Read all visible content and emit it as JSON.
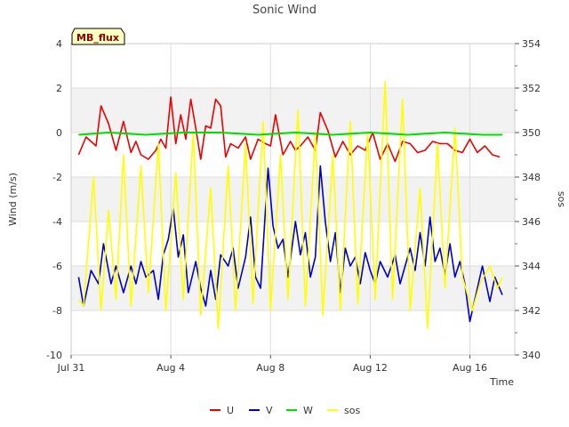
{
  "chart_data": {
    "type": "line",
    "title": "Sonic Wind",
    "badge": "MB_flux",
    "xlabel": "Time",
    "ylabel": "Wind (m/s)",
    "y2label": "sos",
    "xlim": [
      0,
      17.8
    ],
    "ylim": [
      -10,
      4
    ],
    "y2lim": [
      340,
      354
    ],
    "x_ticks": [
      {
        "label": "Jul 31",
        "value": 0
      },
      {
        "label": "Aug 4",
        "value": 4
      },
      {
        "label": "Aug 8",
        "value": 8
      },
      {
        "label": "Aug 12",
        "value": 12
      },
      {
        "label": "Aug 16",
        "value": 16
      }
    ],
    "y_ticks": [
      -10,
      -8,
      -6,
      -4,
      -2,
      0,
      2,
      4
    ],
    "y2_ticks": [
      340,
      342,
      344,
      346,
      348,
      350,
      352,
      354
    ],
    "grid": true,
    "legend_position": "bottom",
    "series": [
      {
        "name": "U",
        "color": "#ee0000",
        "axis": "left",
        "line_width": 1.6,
        "x": [
          0.3,
          0.6,
          1.0,
          1.2,
          1.5,
          1.8,
          2.1,
          2.4,
          2.6,
          2.8,
          3.1,
          3.4,
          3.6,
          3.8,
          4.0,
          4.2,
          4.4,
          4.6,
          4.8,
          5.0,
          5.2,
          5.4,
          5.6,
          5.8,
          6.0,
          6.2,
          6.4,
          6.7,
          7.0,
          7.2,
          7.5,
          7.8,
          8.0,
          8.2,
          8.5,
          8.8,
          9.0,
          9.2,
          9.5,
          9.8,
          10.0,
          10.3,
          10.6,
          10.9,
          11.2,
          11.5,
          11.8,
          12.1,
          12.4,
          12.7,
          13.0,
          13.3,
          13.6,
          13.9,
          14.2,
          14.5,
          14.8,
          15.1,
          15.4,
          15.7,
          16.0,
          16.3,
          16.6,
          16.9,
          17.2
        ],
        "y": [
          -1.0,
          -0.2,
          -0.6,
          1.2,
          0.4,
          -0.8,
          0.5,
          -0.9,
          -0.4,
          -1.0,
          -1.2,
          -0.8,
          -0.3,
          -0.7,
          1.6,
          -0.5,
          0.8,
          -0.3,
          1.5,
          0.2,
          -1.2,
          0.3,
          0.2,
          1.5,
          1.2,
          -1.1,
          -0.5,
          -0.7,
          -0.2,
          -1.2,
          -0.3,
          -0.5,
          -0.6,
          0.8,
          -1.0,
          -0.4,
          -0.8,
          -0.6,
          -0.2,
          -0.8,
          0.9,
          0.1,
          -1.1,
          -0.4,
          -1.0,
          -0.6,
          -0.8,
          0.0,
          -1.2,
          -0.5,
          -1.3,
          -0.4,
          -0.5,
          -0.9,
          -0.8,
          -0.4,
          -0.5,
          -0.5,
          -0.8,
          -0.9,
          -0.3,
          -0.9,
          -0.6,
          -1.0,
          -1.1
        ]
      },
      {
        "name": "V",
        "color": "#0000cc",
        "axis": "left",
        "line_width": 1.6,
        "x": [
          0.3,
          0.5,
          0.8,
          1.1,
          1.3,
          1.6,
          1.8,
          2.1,
          2.4,
          2.6,
          2.8,
          3.0,
          3.3,
          3.5,
          3.7,
          3.9,
          4.1,
          4.3,
          4.5,
          4.7,
          5.0,
          5.2,
          5.4,
          5.6,
          5.8,
          6.0,
          6.3,
          6.5,
          6.7,
          7.0,
          7.2,
          7.4,
          7.6,
          7.9,
          8.1,
          8.3,
          8.5,
          8.7,
          9.0,
          9.2,
          9.4,
          9.6,
          9.8,
          10.0,
          10.2,
          10.4,
          10.6,
          10.8,
          11.0,
          11.2,
          11.4,
          11.6,
          11.8,
          12.0,
          12.2,
          12.4,
          12.7,
          13.0,
          13.2,
          13.4,
          13.6,
          13.8,
          14.0,
          14.2,
          14.4,
          14.6,
          14.8,
          15.0,
          15.2,
          15.4,
          15.6,
          15.8,
          16.0,
          16.2,
          16.5,
          16.8,
          17.0,
          17.3
        ],
        "y": [
          -6.5,
          -7.8,
          -6.2,
          -6.8,
          -5.0,
          -6.8,
          -6.0,
          -7.2,
          -6.0,
          -6.8,
          -5.8,
          -6.5,
          -6.2,
          -7.5,
          -5.5,
          -4.8,
          -3.4,
          -5.6,
          -4.6,
          -7.2,
          -5.8,
          -7.0,
          -7.8,
          -6.2,
          -7.5,
          -5.5,
          -6.0,
          -5.2,
          -7.0,
          -5.6,
          -3.8,
          -6.5,
          -7.0,
          -1.6,
          -4.2,
          -5.2,
          -4.8,
          -6.5,
          -4.0,
          -5.5,
          -4.5,
          -6.5,
          -5.6,
          -1.5,
          -4.0,
          -5.8,
          -4.5,
          -7.2,
          -5.2,
          -6.0,
          -5.6,
          -6.8,
          -5.4,
          -6.2,
          -6.8,
          -5.8,
          -6.5,
          -5.5,
          -6.8,
          -6.0,
          -5.2,
          -6.2,
          -4.5,
          -6.0,
          -3.8,
          -5.8,
          -5.2,
          -6.4,
          -5.0,
          -6.5,
          -5.8,
          -6.8,
          -8.5,
          -7.5,
          -6.0,
          -7.6,
          -6.5,
          -7.3
        ]
      },
      {
        "name": "W",
        "color": "#00dd00",
        "axis": "left",
        "line_width": 2.0,
        "x": [
          0.3,
          1.5,
          3.0,
          4.5,
          6.0,
          7.5,
          9.0,
          10.5,
          12.0,
          13.5,
          15.0,
          16.5,
          17.3
        ],
        "y": [
          -0.1,
          0.0,
          -0.1,
          0.0,
          0.0,
          -0.1,
          0.0,
          -0.1,
          0.0,
          -0.1,
          0.0,
          -0.1,
          -0.1
        ]
      },
      {
        "name": "sos",
        "color": "#ffff00",
        "axis": "right",
        "line_width": 1.6,
        "x": [
          0.3,
          0.5,
          0.9,
          1.2,
          1.5,
          1.8,
          2.1,
          2.4,
          2.8,
          3.1,
          3.5,
          3.8,
          4.2,
          4.5,
          4.9,
          5.2,
          5.6,
          5.9,
          6.3,
          6.6,
          7.0,
          7.3,
          7.7,
          8.0,
          8.4,
          8.7,
          9.1,
          9.4,
          9.8,
          10.1,
          10.5,
          10.8,
          11.2,
          11.5,
          11.9,
          12.2,
          12.6,
          12.9,
          13.3,
          13.6,
          14.0,
          14.3,
          14.7,
          15.0,
          15.4,
          15.7,
          16.1,
          16.4,
          16.8,
          17.1,
          17.3
        ],
        "y": [
          342.5,
          342.2,
          348.0,
          342.0,
          346.5,
          342.5,
          349.0,
          342.2,
          348.5,
          342.8,
          349.5,
          342.0,
          348.2,
          342.5,
          350.0,
          341.8,
          347.5,
          341.2,
          348.5,
          342.0,
          349.5,
          342.3,
          350.5,
          342.0,
          349.0,
          342.5,
          351.0,
          342.2,
          350.0,
          341.8,
          349.0,
          342.0,
          350.5,
          342.3,
          350.0,
          342.5,
          352.3,
          342.5,
          351.5,
          342.0,
          347.5,
          341.2,
          349.5,
          343.0,
          350.2,
          343.5,
          342.0,
          343.2,
          344.0,
          343.0,
          343.5
        ]
      }
    ]
  }
}
